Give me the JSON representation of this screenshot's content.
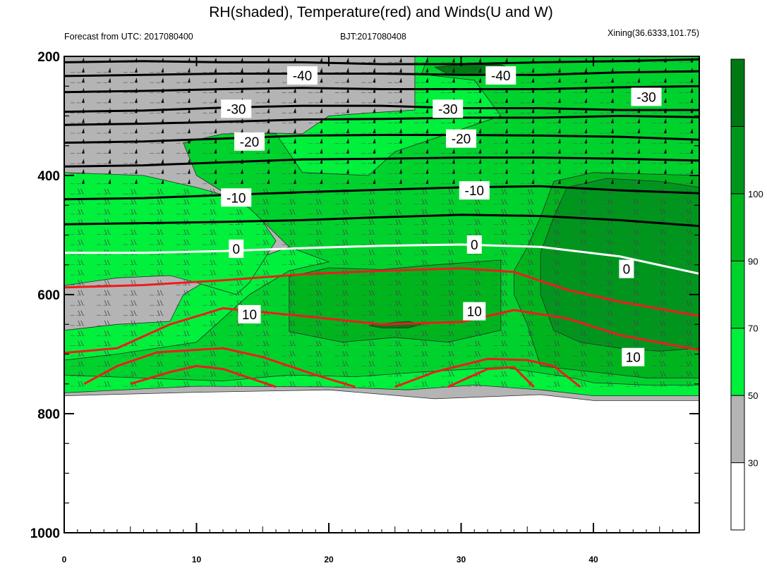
{
  "header": {
    "title": "RH(shaded), Temperature(red) and Winds(U and W)",
    "left": "Forecast from UTC: 2017080400",
    "center": "BJT:2017080408",
    "right": "Xining(36.6333,101.75)"
  },
  "colors": {
    "rh_bins": [
      "#ffffff",
      "#b4b4b4",
      "#00f03c",
      "#00d22d",
      "#00b41e",
      "#00961e",
      "#007814"
    ],
    "rh_levels": [
      30,
      50,
      70,
      90,
      100
    ],
    "temperature": "#ee1c1c",
    "zero_isotherm": "#ffffff",
    "cold_isotherm": "#000000"
  },
  "chart_data": {
    "type": "heatmap",
    "title": "RH(shaded), Temperature(red) and Winds(U and W)",
    "xlim": [
      0,
      48
    ],
    "ylim": [
      1000,
      200
    ],
    "x_ticks": [
      0,
      10,
      20,
      30,
      40
    ],
    "y_ticks": [
      200,
      400,
      600,
      800,
      1000
    ],
    "colorbar": {
      "label_values": [
        30,
        50,
        70,
        90,
        100
      ],
      "tick_labels": [
        "30",
        "50",
        "70",
        "90",
        "100"
      ]
    },
    "rh_regions": [
      {
        "class": 1,
        "points": [
          [
            0,
            770
          ],
          [
            10,
            764
          ],
          [
            20,
            760
          ],
          [
            28,
            775
          ],
          [
            36,
            768
          ],
          [
            40,
            778
          ],
          [
            48,
            778
          ],
          [
            48,
            200
          ],
          [
            0,
            200
          ]
        ]
      },
      {
        "class": 2,
        "points": [
          [
            0,
            765
          ],
          [
            10,
            754
          ],
          [
            20,
            755
          ],
          [
            26,
            760
          ],
          [
            31,
            752
          ],
          [
            36,
            760
          ],
          [
            40,
            770
          ],
          [
            48,
            770
          ],
          [
            48,
            200
          ],
          [
            26.5,
            200
          ],
          [
            26.5,
            290
          ],
          [
            23,
            295
          ],
          [
            20,
            300
          ],
          [
            18,
            330
          ],
          [
            14,
            328
          ],
          [
            11,
            360
          ],
          [
            12,
            400
          ],
          [
            15,
            440
          ],
          [
            17,
            520
          ],
          [
            12,
            560
          ],
          [
            9,
            600
          ],
          [
            8,
            645
          ],
          [
            4,
            650
          ],
          [
            0,
            660
          ]
        ]
      },
      {
        "class": 2,
        "points": [
          [
            0,
            585
          ],
          [
            4,
            572
          ],
          [
            8,
            568
          ],
          [
            10,
            580
          ],
          [
            13,
            600
          ],
          [
            14,
            580
          ],
          [
            16,
            510
          ],
          [
            14,
            445
          ],
          [
            10,
            420
          ],
          [
            6,
            400
          ],
          [
            0,
            395
          ]
        ]
      },
      {
        "class": 3,
        "points": [
          [
            0,
            735
          ],
          [
            8,
            742
          ],
          [
            12,
            745
          ],
          [
            17,
            735
          ],
          [
            22,
            738
          ],
          [
            27,
            730
          ],
          [
            33,
            722
          ],
          [
            38,
            738
          ],
          [
            40,
            748
          ],
          [
            44,
            752
          ],
          [
            48,
            752
          ],
          [
            48,
            200
          ],
          [
            27.5,
            200
          ],
          [
            27,
            230
          ],
          [
            31,
            240
          ],
          [
            33,
            300
          ],
          [
            25,
            360
          ],
          [
            23,
            400
          ],
          [
            18,
            395
          ],
          [
            16,
            330
          ],
          [
            12,
            330
          ],
          [
            9,
            345
          ],
          [
            10,
            400
          ],
          [
            14,
            455
          ],
          [
            17,
            520
          ],
          [
            20,
            545
          ],
          [
            17,
            560
          ],
          [
            14,
            600
          ],
          [
            10,
            680
          ],
          [
            4,
            700
          ],
          [
            0,
            710
          ]
        ]
      },
      {
        "class": 4,
        "points": [
          [
            17,
            570
          ],
          [
            20,
            555
          ],
          [
            24,
            558
          ],
          [
            28,
            550
          ],
          [
            33,
            542
          ],
          [
            33,
            580
          ],
          [
            33,
            660
          ],
          [
            29,
            680
          ],
          [
            25,
            672
          ],
          [
            21,
            680
          ],
          [
            17,
            662
          ]
        ]
      },
      {
        "class": 4,
        "points": [
          [
            36,
            720
          ],
          [
            40,
            730
          ],
          [
            44,
            740
          ],
          [
            48,
            740
          ],
          [
            48,
            400
          ],
          [
            40,
            395
          ],
          [
            37,
            410
          ],
          [
            36,
            470
          ],
          [
            35,
            520
          ],
          [
            34,
            560
          ],
          [
            34,
            600
          ],
          [
            35,
            650
          ]
        ]
      },
      {
        "class": 5,
        "points": [
          [
            36,
            600
          ],
          [
            37,
            660
          ],
          [
            39,
            680
          ],
          [
            42,
            690
          ],
          [
            45,
            695
          ],
          [
            48,
            690
          ],
          [
            48,
            420
          ],
          [
            45,
            410
          ],
          [
            41,
            405
          ],
          [
            38,
            420
          ],
          [
            37,
            470
          ],
          [
            36,
            530
          ]
        ]
      },
      {
        "class": 6,
        "points": [
          [
            24,
            649
          ],
          [
            26,
            645
          ],
          [
            27,
            650
          ],
          [
            26,
            656
          ],
          [
            24,
            656
          ],
          [
            23,
            652
          ]
        ]
      },
      {
        "class": 6,
        "points": [
          [
            28,
            218
          ],
          [
            30,
            214
          ],
          [
            33,
            214
          ],
          [
            34,
            222
          ],
          [
            32,
            230
          ],
          [
            29,
            230
          ]
        ]
      }
    ],
    "isotherms": [
      {
        "t": -40,
        "points": [
          [
            0,
            210
          ],
          [
            6,
            208
          ],
          [
            12,
            210
          ],
          [
            18,
            210
          ],
          [
            24,
            213
          ],
          [
            30,
            213
          ],
          [
            36,
            210
          ],
          [
            42,
            208
          ],
          [
            48,
            205
          ]
        ]
      },
      {
        "t": -40,
        "points": [
          [
            0,
            233
          ],
          [
            6,
            231
          ],
          [
            12,
            229
          ],
          [
            18,
            229
          ],
          [
            24,
            229
          ],
          [
            30,
            231
          ],
          [
            36,
            231
          ],
          [
            42,
            227
          ],
          [
            48,
            225
          ]
        ]
      },
      {
        "t": -30,
        "points": [
          [
            0,
            260
          ],
          [
            6,
            258
          ],
          [
            12,
            255
          ],
          [
            18,
            253
          ],
          [
            24,
            255
          ],
          [
            30,
            255
          ],
          [
            36,
            255
          ],
          [
            42,
            252
          ],
          [
            48,
            250
          ]
        ]
      },
      {
        "t": -30,
        "points": [
          [
            0,
            293
          ],
          [
            6,
            291
          ],
          [
            12,
            286
          ],
          [
            18,
            283
          ],
          [
            24,
            283
          ],
          [
            30,
            287
          ],
          [
            36,
            287
          ],
          [
            42,
            290
          ],
          [
            48,
            290
          ]
        ]
      },
      {
        "t": -20,
        "points": [
          [
            0,
            315
          ],
          [
            6,
            313
          ],
          [
            12,
            310
          ],
          [
            18,
            306
          ],
          [
            24,
            305
          ],
          [
            30,
            303
          ],
          [
            36,
            303
          ],
          [
            42,
            300
          ],
          [
            48,
            302
          ]
        ]
      },
      {
        "t": -20,
        "points": [
          [
            0,
            345
          ],
          [
            6,
            343
          ],
          [
            12,
            338
          ],
          [
            18,
            333
          ],
          [
            24,
            332
          ],
          [
            30,
            332
          ],
          [
            36,
            333
          ],
          [
            42,
            335
          ],
          [
            48,
            340
          ]
        ]
      },
      {
        "t": -10,
        "points": [
          [
            0,
            385
          ],
          [
            6,
            383
          ],
          [
            12,
            378
          ],
          [
            18,
            373
          ],
          [
            24,
            372
          ],
          [
            30,
            370
          ],
          [
            36,
            370
          ],
          [
            42,
            372
          ],
          [
            48,
            375
          ]
        ]
      },
      {
        "t": -10,
        "points": [
          [
            0,
            440
          ],
          [
            6,
            438
          ],
          [
            12,
            433
          ],
          [
            18,
            428
          ],
          [
            24,
            424
          ],
          [
            30,
            420
          ],
          [
            36,
            418
          ],
          [
            42,
            425
          ],
          [
            48,
            430
          ]
        ]
      },
      {
        "t": -10,
        "points": [
          [
            0,
            482
          ],
          [
            6,
            480
          ],
          [
            12,
            478
          ],
          [
            18,
            475
          ],
          [
            24,
            470
          ],
          [
            30,
            466
          ],
          [
            36,
            468
          ],
          [
            42,
            475
          ],
          [
            48,
            485
          ]
        ]
      },
      {
        "t": 0,
        "points": [
          [
            0,
            530
          ],
          [
            6,
            530
          ],
          [
            12,
            527
          ],
          [
            18,
            522
          ],
          [
            24,
            518
          ],
          [
            30,
            516
          ],
          [
            36,
            520
          ],
          [
            42,
            536
          ],
          [
            48,
            565
          ]
        ]
      },
      {
        "t": 10,
        "points": [
          [
            0,
            588
          ],
          [
            6,
            584
          ],
          [
            12,
            576
          ],
          [
            18,
            566
          ],
          [
            24,
            560
          ],
          [
            30,
            556
          ],
          [
            34,
            562
          ],
          [
            38,
            592
          ],
          [
            42,
            612
          ],
          [
            48,
            636
          ]
        ]
      },
      {
        "t": 10,
        "points": [
          [
            0,
            698
          ],
          [
            4,
            690
          ],
          [
            8,
            650
          ],
          [
            12,
            623
          ],
          [
            18,
            636
          ],
          [
            24,
            650
          ],
          [
            30,
            646
          ],
          [
            34,
            626
          ],
          [
            38,
            640
          ],
          [
            42,
            668
          ],
          [
            48,
            693
          ]
        ]
      },
      {
        "t": 10,
        "points": [
          [
            1.5,
            750
          ],
          [
            4,
            720
          ],
          [
            7,
            697
          ],
          [
            12,
            690
          ],
          [
            15,
            705
          ],
          [
            19,
            735
          ],
          [
            22,
            755
          ]
        ]
      },
      {
        "t": 10,
        "points": [
          [
            5,
            750
          ],
          [
            8,
            730
          ],
          [
            10,
            720
          ],
          [
            12,
            725
          ],
          [
            16,
            755
          ]
        ]
      },
      {
        "t": 10,
        "points": [
          [
            25,
            755
          ],
          [
            28,
            730
          ],
          [
            32,
            708
          ],
          [
            35,
            710
          ],
          [
            37,
            720
          ],
          [
            39,
            755
          ]
        ]
      },
      {
        "t": 10,
        "points": [
          [
            29,
            755
          ],
          [
            32,
            725
          ],
          [
            34,
            722
          ],
          [
            35.5,
            755
          ]
        ]
      }
    ],
    "contour_labels": [
      {
        "text": "-40",
        "x": 18,
        "y": 232
      },
      {
        "text": "-40",
        "x": 33,
        "y": 232
      },
      {
        "text": "-30",
        "x": 13,
        "y": 288
      },
      {
        "text": "-30",
        "x": 29,
        "y": 288
      },
      {
        "text": "-30",
        "x": 44,
        "y": 268
      },
      {
        "text": "-20",
        "x": 14,
        "y": 343
      },
      {
        "text": "-20",
        "x": 30,
        "y": 338
      },
      {
        "text": "-10",
        "x": 13,
        "y": 437
      },
      {
        "text": "-10",
        "x": 31,
        "y": 425
      },
      {
        "text": "0",
        "x": 13,
        "y": 523
      },
      {
        "text": "0",
        "x": 31,
        "y": 516
      },
      {
        "text": "0",
        "x": 42.5,
        "y": 557
      },
      {
        "text": "10",
        "x": 14,
        "y": 633
      },
      {
        "text": "10",
        "x": 31,
        "y": 628
      },
      {
        "text": "10",
        "x": 43,
        "y": 705
      }
    ]
  }
}
